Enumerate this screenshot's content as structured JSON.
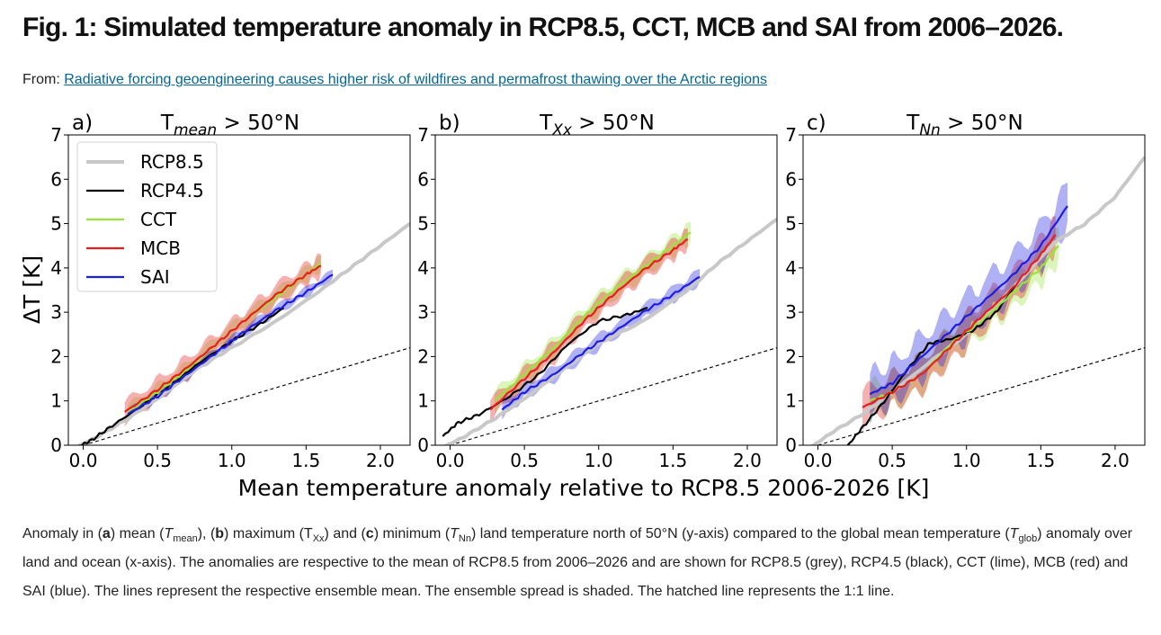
{
  "figure": {
    "title": "Fig. 1: Simulated temperature anomaly in RCP8.5, CCT, MCB and SAI from 2006–2026.",
    "source_prefix": "From:",
    "source_link": "Radiative forcing geoengineering causes higher risk of wildfires and permafrost thawing over the Arctic regions",
    "caption": {
      "t1": "Anomaly in (",
      "a": "a",
      "t2": ") mean (",
      "tmean_T": "T",
      "tmean_sub": "mean",
      "t3": "), (",
      "b": "b",
      "t4": ") maximum (T",
      "txx_sub": "Xx",
      "t5": ") and (",
      "c": "c",
      "t6": ") minimum (",
      "tnn_T": "T",
      "tnn_sub": "Nn",
      "t7": ") land temperature north of 50°N (y-axis) compared to the global mean temperature (",
      "tglob_T": "T",
      "tglob_sub": "glob",
      "t8": ") anomaly over land and ocean (x-axis). The anomalies are respective to the mean of RCP8.5 from 2006–2026 and are shown for RCP8.5 (grey), RCP4.5 (black), CCT (lime), MCB (red) and SAI (blue). The lines represent the respective ensemble mean. The ensemble spread is shaded. The hatched line represents the 1:1 line."
    }
  },
  "chart_data": [
    {
      "type": "line",
      "panel_label": "a)",
      "title": "T_mean > 50°N",
      "title_main": "T",
      "title_sub": "mean",
      "title_rest": " > 50°N",
      "xlabel": "Mean temperature anomaly relative to RCP8.5 2006-2026 [K]",
      "ylabel": "ΔT [K]",
      "xlim": [
        -0.1,
        2.2
      ],
      "ylim": [
        0,
        7
      ],
      "xticks": [
        0.0,
        0.5,
        1.0,
        1.5,
        2.0
      ],
      "xtick_labels": [
        "0.0",
        "0.5",
        "1.0",
        "1.5",
        "2.0"
      ],
      "yticks": [
        0,
        1,
        2,
        3,
        4,
        5,
        6,
        7
      ],
      "ytick_labels": [
        "0",
        "1",
        "2",
        "3",
        "4",
        "5",
        "6",
        "7"
      ],
      "reference_line": {
        "label": "1:1 line",
        "x": [
          0,
          2.2
        ],
        "y": [
          0,
          2.2
        ]
      },
      "legend": {
        "position": "top-left",
        "entries": [
          "RCP8.5",
          "RCP4.5",
          "CCT",
          "MCB",
          "SAI"
        ]
      },
      "series": [
        {
          "name": "RCP8.5",
          "color": "#c8c8c8",
          "x": [
            -0.05,
            0.1,
            0.3,
            0.5,
            0.8,
            1.0,
            1.3,
            1.6,
            1.8,
            2.0,
            2.2
          ],
          "y": [
            -0.05,
            0.2,
            0.6,
            1.05,
            1.8,
            2.2,
            2.8,
            3.5,
            4.0,
            4.5,
            5.0
          ],
          "spread": 0
        },
        {
          "name": "RCP4.5",
          "color": "#000000",
          "x": [
            -0.05,
            0.05,
            0.2,
            0.4,
            0.6,
            0.8,
            1.0,
            1.2,
            1.35
          ],
          "y": [
            -0.05,
            0.1,
            0.45,
            0.9,
            1.4,
            1.9,
            2.35,
            2.75,
            3.1
          ],
          "spread": 0
        },
        {
          "name": "CCT",
          "color": "#9be33a",
          "x": [
            0.3,
            0.5,
            0.7,
            0.9,
            1.1,
            1.3,
            1.5,
            1.6
          ],
          "y": [
            0.75,
            1.2,
            1.7,
            2.3,
            2.85,
            3.35,
            3.85,
            4.1
          ],
          "spread": 0.15
        },
        {
          "name": "MCB",
          "color": "#e51e1e",
          "x": [
            0.28,
            0.5,
            0.7,
            0.9,
            1.1,
            1.3,
            1.5,
            1.6
          ],
          "y": [
            0.75,
            1.25,
            1.75,
            2.3,
            2.85,
            3.4,
            3.85,
            4.05
          ],
          "spread": 0.22
        },
        {
          "name": "SAI",
          "color": "#1e1ee0",
          "x": [
            0.3,
            0.5,
            0.7,
            0.9,
            1.1,
            1.3,
            1.5,
            1.68
          ],
          "y": [
            0.7,
            1.1,
            1.6,
            2.1,
            2.6,
            3.05,
            3.45,
            3.85
          ],
          "spread": 0.1
        }
      ]
    },
    {
      "type": "line",
      "panel_label": "b)",
      "title": "T_Xx > 50°N",
      "title_main": "T",
      "title_sub": "Xx",
      "title_rest": " > 50°N",
      "xlim": [
        -0.1,
        2.2
      ],
      "ylim": [
        0,
        7
      ],
      "xticks": [
        0.0,
        0.5,
        1.0,
        1.5,
        2.0
      ],
      "xtick_labels": [
        "0.0",
        "0.5",
        "1.0",
        "1.5",
        "2.0"
      ],
      "yticks": [
        0,
        1,
        2,
        3,
        4,
        5,
        6,
        7
      ],
      "ytick_labels": [
        "0",
        "1",
        "2",
        "3",
        "4",
        "5",
        "6",
        "7"
      ],
      "reference_line": {
        "label": "1:1 line",
        "x": [
          0,
          2.2
        ],
        "y": [
          0,
          2.2
        ]
      },
      "series": [
        {
          "name": "RCP8.5",
          "color": "#c8c8c8",
          "x": [
            -0.05,
            0.1,
            0.3,
            0.5,
            0.8,
            1.0,
            1.3,
            1.6,
            1.8,
            2.0,
            2.2
          ],
          "y": [
            -0.05,
            0.2,
            0.6,
            1.05,
            1.8,
            2.3,
            2.8,
            3.5,
            4.1,
            4.6,
            5.1
          ],
          "spread": 0
        },
        {
          "name": "RCP4.5",
          "color": "#000000",
          "x": [
            -0.05,
            0.05,
            0.2,
            0.4,
            0.6,
            0.8,
            1.0,
            1.2,
            1.33
          ],
          "y": [
            0.2,
            0.5,
            0.7,
            1.1,
            1.6,
            2.3,
            2.8,
            2.95,
            3.1
          ],
          "spread": 0
        },
        {
          "name": "CCT",
          "color": "#9be33a",
          "x": [
            0.3,
            0.5,
            0.7,
            0.9,
            1.1,
            1.3,
            1.5,
            1.62
          ],
          "y": [
            1.0,
            1.6,
            2.2,
            2.9,
            3.5,
            4.0,
            4.5,
            4.8
          ],
          "spread": 0.2
        },
        {
          "name": "MCB",
          "color": "#e51e1e",
          "x": [
            0.27,
            0.5,
            0.7,
            0.9,
            1.1,
            1.3,
            1.5,
            1.6
          ],
          "y": [
            0.8,
            1.5,
            2.1,
            2.8,
            3.4,
            3.95,
            4.4,
            4.65
          ],
          "spread": 0.2
        },
        {
          "name": "SAI",
          "color": "#1e1ee0",
          "x": [
            0.35,
            0.5,
            0.7,
            0.9,
            1.1,
            1.3,
            1.5,
            1.68
          ],
          "y": [
            0.8,
            1.2,
            1.6,
            2.1,
            2.55,
            3.0,
            3.4,
            3.8
          ],
          "spread": 0.15
        }
      ]
    },
    {
      "type": "line",
      "panel_label": "c)",
      "title": "T_Nn > 50°N",
      "title_main": "T",
      "title_sub": "Nn",
      "title_rest": " > 50°N",
      "xlim": [
        -0.1,
        2.2
      ],
      "ylim": [
        0,
        7
      ],
      "xticks": [
        0.0,
        0.5,
        1.0,
        1.5,
        2.0
      ],
      "xtick_labels": [
        "0.0",
        "0.5",
        "1.0",
        "1.5",
        "2.0"
      ],
      "yticks": [
        0,
        1,
        2,
        3,
        4,
        5,
        6,
        7
      ],
      "ytick_labels": [
        "0",
        "1",
        "2",
        "3",
        "4",
        "5",
        "6",
        "7"
      ],
      "reference_line": {
        "label": "1:1 line",
        "x": [
          0,
          2.2
        ],
        "y": [
          0,
          2.2
        ]
      },
      "series": [
        {
          "name": "RCP8.5",
          "color": "#c8c8c8",
          "x": [
            -0.05,
            0.1,
            0.3,
            0.5,
            0.8,
            1.0,
            1.3,
            1.6,
            1.8,
            2.0,
            2.2
          ],
          "y": [
            -0.05,
            0.3,
            0.7,
            1.2,
            2.0,
            2.5,
            3.5,
            4.6,
            5.0,
            5.6,
            6.5
          ],
          "spread": 0
        },
        {
          "name": "RCP4.5",
          "color": "#000000",
          "x": [
            0.19,
            0.3,
            0.45,
            0.6,
            0.75,
            0.9,
            1.05,
            1.2,
            1.33
          ],
          "y": [
            -0.05,
            0.4,
            1.0,
            1.7,
            2.3,
            2.4,
            2.6,
            3.0,
            3.6
          ],
          "spread": 0
        },
        {
          "name": "CCT",
          "color": "#9be33a",
          "x": [
            0.35,
            0.5,
            0.7,
            0.9,
            1.1,
            1.3,
            1.5,
            1.62
          ],
          "y": [
            1.0,
            1.2,
            1.6,
            2.3,
            2.8,
            3.4,
            4.0,
            4.5
          ],
          "spread": 0.35
        },
        {
          "name": "MCB",
          "color": "#e51e1e",
          "x": [
            0.3,
            0.5,
            0.7,
            0.9,
            1.1,
            1.3,
            1.5,
            1.6
          ],
          "y": [
            0.85,
            1.2,
            1.6,
            2.25,
            2.9,
            3.5,
            4.3,
            4.75
          ],
          "spread": 0.35
        },
        {
          "name": "SAI",
          "color": "#1e1ee0",
          "x": [
            0.35,
            0.5,
            0.7,
            0.9,
            1.1,
            1.3,
            1.5,
            1.68
          ],
          "y": [
            1.15,
            1.4,
            2.0,
            2.6,
            3.2,
            3.8,
            4.5,
            5.4
          ],
          "spread": 0.45
        }
      ]
    }
  ]
}
